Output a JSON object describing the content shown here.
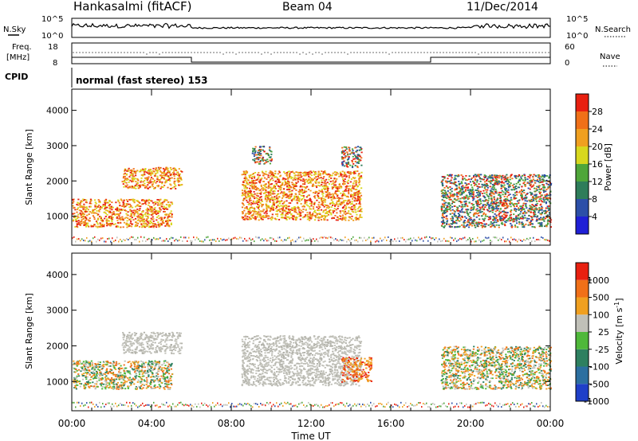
{
  "header": {
    "station": "Hankasalmi (fitACF)",
    "beam": "Beam 04",
    "date": "11/Dec/2014"
  },
  "nsky_panel": {
    "left_label": "N.Sky",
    "right_label": "N.Search",
    "left_ticks": [
      "10^5",
      "10^0"
    ],
    "right_ticks": [
      "10^5",
      "10^0"
    ]
  },
  "freq_panel": {
    "left_label_1": "Freq.",
    "left_label_2": "[MHz]",
    "left_ticks": [
      "18",
      "8"
    ],
    "right_label": "Nave",
    "right_ticks": [
      "60",
      "0"
    ]
  },
  "cpid_panel": {
    "label": "CPID",
    "program": "normal (fast stereo) 153"
  },
  "chart_data": [
    {
      "type": "heatmap",
      "name": "power",
      "ylabel": "Slant Range [km]",
      "ylim": [
        180,
        4600
      ],
      "yticks": [
        "1000",
        "2000",
        "3000",
        "4000"
      ],
      "ytick_values": [
        1000,
        2000,
        3000,
        4000
      ],
      "colorbar_label": "Power [dB]",
      "colorbar_ticks": [
        "28",
        "24",
        "20",
        "16",
        "12",
        "8",
        "4"
      ],
      "colorbar_colors": [
        "#1f1fd6",
        "#2c4fa8",
        "#2e7d5a",
        "#4fa63a",
        "#d8d81e",
        "#f0a020",
        "#f07018",
        "#e82010"
      ],
      "colorbar_range": [
        0,
        32
      ],
      "echo_regions": [
        {
          "t0": 0.0,
          "t1": 5.0,
          "r0": 700,
          "r1": 1500,
          "level": "strong"
        },
        {
          "t0": 2.5,
          "t1": 5.5,
          "r0": 1800,
          "r1": 2400,
          "level": "strong"
        },
        {
          "t0": 8.5,
          "t1": 14.5,
          "r0": 900,
          "r1": 2300,
          "level": "strong"
        },
        {
          "t0": 9.0,
          "t1": 10.0,
          "r0": 2500,
          "r1": 3000,
          "level": "medium"
        },
        {
          "t0": 13.5,
          "t1": 14.5,
          "r0": 2400,
          "r1": 3000,
          "level": "medium"
        },
        {
          "t0": 18.5,
          "t1": 24.0,
          "r0": 700,
          "r1": 2200,
          "level": "medium"
        }
      ]
    },
    {
      "type": "heatmap",
      "name": "velocity",
      "ylabel": "Slant Range [km]",
      "ylim": [
        180,
        4600
      ],
      "yticks": [
        "1000",
        "2000",
        "3000",
        "4000"
      ],
      "ytick_values": [
        1000,
        2000,
        3000,
        4000
      ],
      "colorbar_label": "Velocity [m s^-1]",
      "colorbar_ticks": [
        "1000",
        "500",
        "100",
        "25",
        "-25",
        "-100",
        "-500",
        "-1000"
      ],
      "colorbar_colors": [
        "#1f3fc8",
        "#2c6fa0",
        "#2e8060",
        "#4fb83a",
        "#c0c0b8",
        "#f0a020",
        "#f07018",
        "#e82010"
      ],
      "echo_regions": [
        {
          "t0": 0.0,
          "t1": 5.0,
          "r0": 800,
          "r1": 1600,
          "level": "mixed"
        },
        {
          "t0": 2.5,
          "t1": 5.5,
          "r0": 1800,
          "r1": 2400,
          "level": "gray"
        },
        {
          "t0": 8.5,
          "t1": 14.5,
          "r0": 900,
          "r1": 2300,
          "level": "gray"
        },
        {
          "t0": 13.5,
          "t1": 15.0,
          "r0": 1000,
          "r1": 1700,
          "level": "orange"
        },
        {
          "t0": 18.5,
          "t1": 24.0,
          "r0": 800,
          "r1": 2000,
          "level": "mixed"
        }
      ]
    }
  ],
  "time_axis": {
    "label": "Time UT",
    "ticks": [
      "00:00",
      "04:00",
      "08:00",
      "12:00",
      "16:00",
      "20:00",
      "00:00"
    ],
    "range_hours": [
      0,
      24
    ]
  }
}
